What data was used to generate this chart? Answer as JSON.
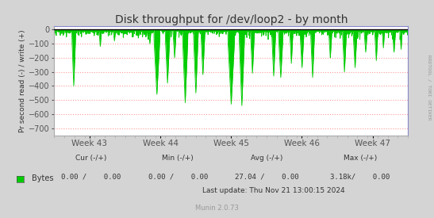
{
  "title": "Disk throughput for /dev/loop2 - by month",
  "ylabel": "Pr second read (-) / write (+)",
  "xlabel_ticks": [
    "Week 43",
    "Week 44",
    "Week 45",
    "Week 46",
    "Week 47"
  ],
  "ylim": [
    -750,
    25
  ],
  "yticks": [
    0,
    -100,
    -200,
    -300,
    -400,
    -500,
    -600,
    -700
  ],
  "fig_bg_color": "#d4d4d4",
  "plot_bg_color": "#ffffff",
  "grid_color": "#ff9999",
  "line_color": "#00cc00",
  "zero_line_color": "#000000",
  "border_color": "#aaaaaa",
  "title_color": "#333333",
  "label_color": "#333333",
  "tick_color": "#555555",
  "right_label": "RRDTOOL / TOBI OETIKER",
  "legend_label": "Bytes",
  "legend_color": "#00cc00",
  "footer_cur_label": "Cur (-/+)",
  "footer_cur": "0.00 /    0.00",
  "footer_min_label": "Min (-/+)",
  "footer_min": "0.00 /    0.00",
  "footer_avg_label": "Avg (-/+)",
  "footer_avg": "27.04 /    0.00",
  "footer_max_label": "Max (-/+)",
  "footer_max": "3.18k/    0.00",
  "footer_update": "Last update: Thu Nov 21 13:00:15 2024",
  "munin_version": "Munin 2.0.73",
  "seed": 42
}
